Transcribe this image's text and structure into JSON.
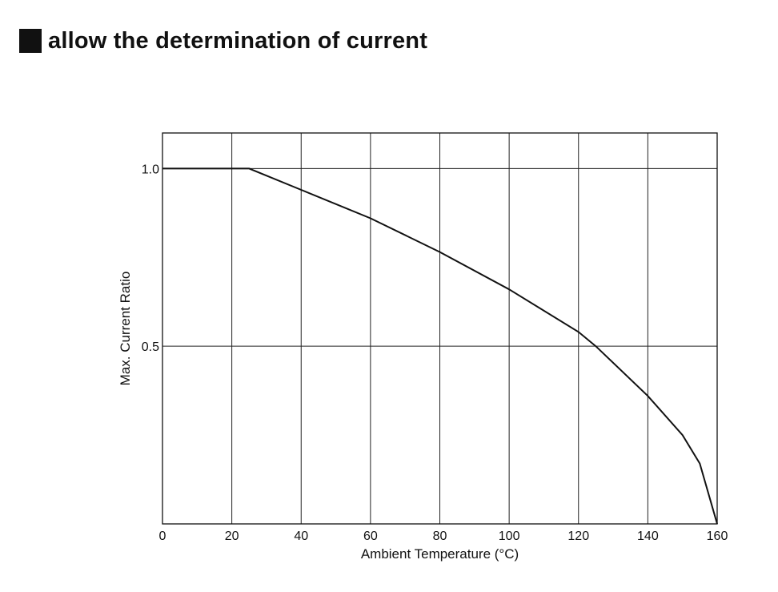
{
  "heading": {
    "text": "allow the determination of current",
    "marker_icon": "black-square-icon"
  },
  "chart_data": {
    "type": "line",
    "title": "",
    "xlabel": "Ambient Temperature (°C)",
    "ylabel": "Max. Current Ratio",
    "xlim": [
      0,
      160
    ],
    "ylim": [
      0,
      1.1
    ],
    "grid": true,
    "x_ticks": [
      0,
      20,
      40,
      60,
      80,
      100,
      120,
      140,
      160
    ],
    "x_tick_labels": [
      "0",
      "20",
      "40",
      "60",
      "80",
      "100",
      "120",
      "140",
      "160"
    ],
    "y_ticks": [
      0.5,
      1.0
    ],
    "y_tick_labels": [
      "0.5",
      "1.0"
    ],
    "series": [
      {
        "color": "#111111",
        "x": [
          0,
          25,
          40,
          60,
          80,
          100,
          120,
          125,
          140,
          150,
          155,
          160
        ],
        "y": [
          1.0,
          1.0,
          0.94,
          0.86,
          0.765,
          0.66,
          0.54,
          0.5,
          0.36,
          0.25,
          0.17,
          0.0
        ]
      }
    ]
  }
}
